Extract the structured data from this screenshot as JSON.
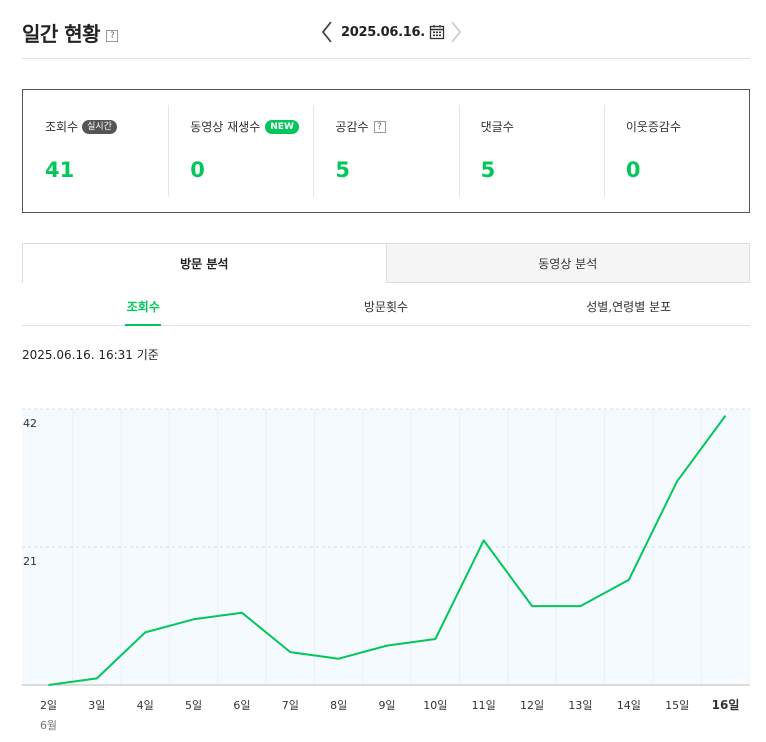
{
  "header": {
    "title": "일간 현황",
    "help": "?",
    "date": "2025.06.16."
  },
  "stats": [
    {
      "label": "조회수",
      "badge": "실시간",
      "badge_type": "live",
      "value": "41"
    },
    {
      "label": "동영상 재생수",
      "badge": "NEW",
      "badge_type": "new",
      "value": "0"
    },
    {
      "label": "공감수",
      "badge": "?",
      "badge_type": "help",
      "value": "5"
    },
    {
      "label": "댓글수",
      "badge": "",
      "badge_type": "",
      "value": "5"
    },
    {
      "label": "이웃증감수",
      "badge": "",
      "badge_type": "",
      "value": "0"
    }
  ],
  "tabs": [
    {
      "label": "방문 분석",
      "active": true
    },
    {
      "label": "동영상 분석",
      "active": false
    }
  ],
  "subtabs": [
    {
      "label": "조회수",
      "active": true
    },
    {
      "label": "방문횟수",
      "active": false
    },
    {
      "label": "성별,연령별 분포",
      "active": false
    }
  ],
  "basis": "2025.06.16. 16:31 기준",
  "colors": {
    "accent": "#03c75a",
    "chart_fill": "#f4fafd",
    "grid": "#cfe3ec"
  },
  "chart_data": {
    "type": "line",
    "categories": [
      "2일",
      "3일",
      "4일",
      "5일",
      "6일",
      "7일",
      "8일",
      "9일",
      "10일",
      "11일",
      "12일",
      "13일",
      "14일",
      "15일",
      "16일"
    ],
    "month_label": "6월",
    "values": [
      0,
      1,
      8,
      10,
      11,
      5,
      4,
      6,
      7,
      22,
      12,
      12,
      16,
      31,
      41
    ],
    "y_ticks": [
      "42",
      "21"
    ],
    "ylim": [
      0,
      42
    ],
    "highlight_category": "16일"
  }
}
